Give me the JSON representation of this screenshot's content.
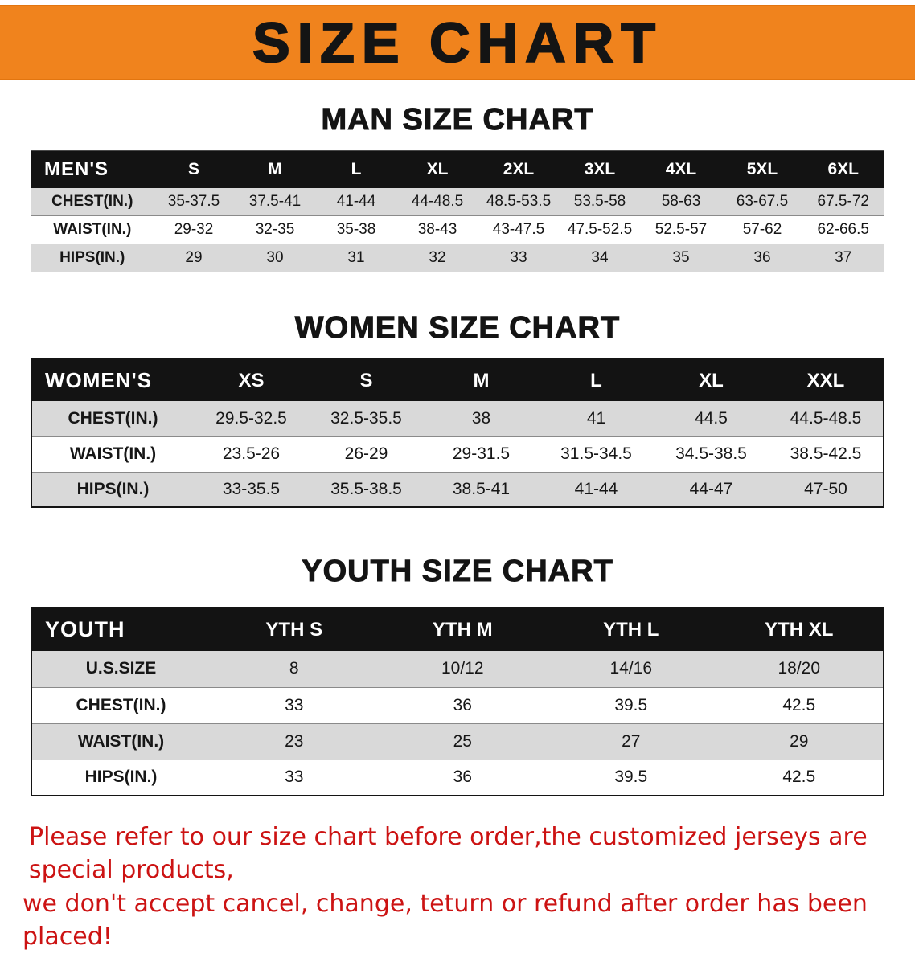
{
  "banner": {
    "title": "SIZE CHART"
  },
  "colors": {
    "banner_bg": "#f0831d",
    "header_bg": "#131313",
    "shade_bg": "#d9d9d9",
    "notice_color": "#cc1313"
  },
  "sections": [
    {
      "heading": "MAN SIZE CHART",
      "header_label": "MEN'S",
      "columns": [
        "S",
        "M",
        "L",
        "XL",
        "2XL",
        "3XL",
        "4XL",
        "5XL",
        "6XL"
      ],
      "rows": [
        {
          "label": "CHEST(IN.)",
          "values": [
            "35-37.5",
            "37.5-41",
            "41-44",
            "44-48.5",
            "48.5-53.5",
            "53.5-58",
            "58-63",
            "63-67.5",
            "67.5-72"
          ]
        },
        {
          "label": "WAIST(IN.)",
          "values": [
            "29-32",
            "32-35",
            "35-38",
            "38-43",
            "43-47.5",
            "47.5-52.5",
            "52.5-57",
            "57-62",
            "62-66.5"
          ]
        },
        {
          "label": "HIPS(IN.)",
          "values": [
            "29",
            "30",
            "31",
            "32",
            "33",
            "34",
            "35",
            "36",
            "37"
          ]
        }
      ]
    },
    {
      "heading": "WOMEN SIZE CHART",
      "header_label": "WOMEN'S",
      "columns": [
        "XS",
        "S",
        "M",
        "L",
        "XL",
        "XXL"
      ],
      "rows": [
        {
          "label": "CHEST(IN.)",
          "values": [
            "29.5-32.5",
            "32.5-35.5",
            "38",
            "41",
            "44.5",
            "44.5-48.5"
          ]
        },
        {
          "label": "WAIST(IN.)",
          "values": [
            "23.5-26",
            "26-29",
            "29-31.5",
            "31.5-34.5",
            "34.5-38.5",
            "38.5-42.5"
          ]
        },
        {
          "label": "HIPS(IN.)",
          "values": [
            "33-35.5",
            "35.5-38.5",
            "38.5-41",
            "41-44",
            "44-47",
            "47-50"
          ]
        }
      ]
    },
    {
      "heading": "YOUTH SIZE CHART",
      "header_label": "YOUTH",
      "columns": [
        "YTH S",
        "YTH M",
        "YTH L",
        "YTH XL"
      ],
      "rows": [
        {
          "label": "U.S.SIZE",
          "values": [
            "8",
            "10/12",
            "14/16",
            "18/20"
          ]
        },
        {
          "label": "CHEST(IN.)",
          "values": [
            "33",
            "36",
            "39.5",
            "42.5"
          ]
        },
        {
          "label": "WAIST(IN.)",
          "values": [
            "23",
            "25",
            "27",
            "29"
          ]
        },
        {
          "label": "HIPS(IN.)",
          "values": [
            "33",
            "36",
            "39.5",
            "42.5"
          ]
        }
      ]
    }
  ],
  "notice": {
    "line1": "Please refer to our size chart before order,the customized jerseys are special products,",
    "line2": "we don't accept cancel, change, teturn or refund after order has been placed!"
  }
}
